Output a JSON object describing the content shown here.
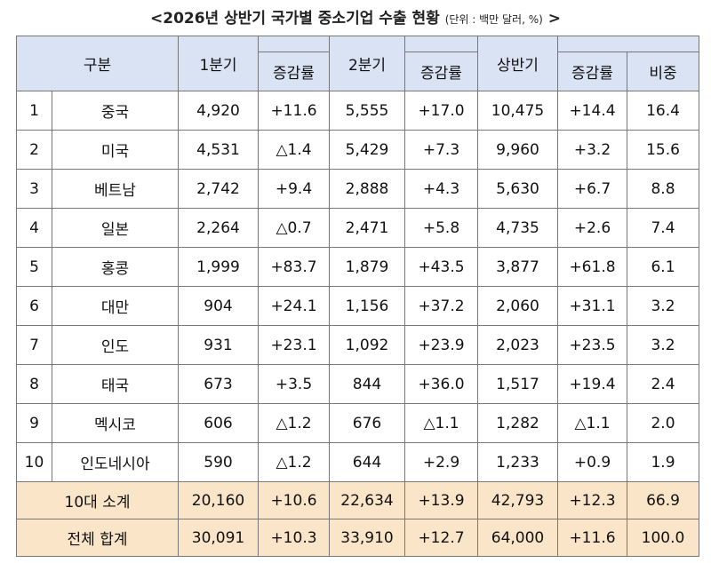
{
  "title": {
    "main": "<2026년 상반기 국가별 중소기업 수출 현황",
    "unit": "(단위 : 백만 달러, %)",
    "close": ">"
  },
  "table": {
    "header": [
      "구분",
      "1분기",
      "증감률",
      "2분기",
      "증감률",
      "상반기",
      "증감률",
      "비중"
    ],
    "rows": [
      [
        "1",
        "중국",
        "4,920",
        "+11.6",
        "5,555",
        "+17.0",
        "10,475",
        "+14.4",
        "16.4"
      ],
      [
        "2",
        "미국",
        "4,531",
        "△1.4",
        "5,429",
        "+7.3",
        "9,960",
        "+3.2",
        "15.6"
      ],
      [
        "3",
        "베트남",
        "2,742",
        "+9.4",
        "2,888",
        "+4.3",
        "5,630",
        "+6.7",
        "8.8"
      ],
      [
        "4",
        "일본",
        "2,264",
        "△0.7",
        "2,471",
        "+5.8",
        "4,735",
        "+2.6",
        "7.4"
      ],
      [
        "5",
        "홍콩",
        "1,999",
        "+83.7",
        "1,879",
        "+43.5",
        "3,877",
        "+61.8",
        "6.1"
      ],
      [
        "6",
        "대만",
        "904",
        "+24.1",
        "1,156",
        "+37.2",
        "2,060",
        "+31.1",
        "3.2"
      ],
      [
        "7",
        "인도",
        "931",
        "+23.1",
        "1,092",
        "+23.9",
        "2,023",
        "+23.5",
        "3.2"
      ],
      [
        "8",
        "태국",
        "673",
        "+3.5",
        "844",
        "+36.0",
        "1,517",
        "+19.4",
        "2.4"
      ],
      [
        "9",
        "멕시코",
        "606",
        "△1.2",
        "676",
        "△1.1",
        "1,282",
        "△1.1",
        "2.0"
      ],
      [
        "10",
        "인도네시아",
        "590",
        "△1.2",
        "644",
        "+2.9",
        "1,233",
        "+0.9",
        "1.9"
      ]
    ],
    "totals": [
      [
        "10대 소계",
        "20,160",
        "+10.6",
        "22,634",
        "+13.9",
        "42,793",
        "+12.3",
        "66.9"
      ],
      [
        "전체 합계",
        "30,091",
        "+10.3",
        "33,910",
        "+12.7",
        "64,000",
        "+11.6",
        "100.0"
      ]
    ]
  }
}
